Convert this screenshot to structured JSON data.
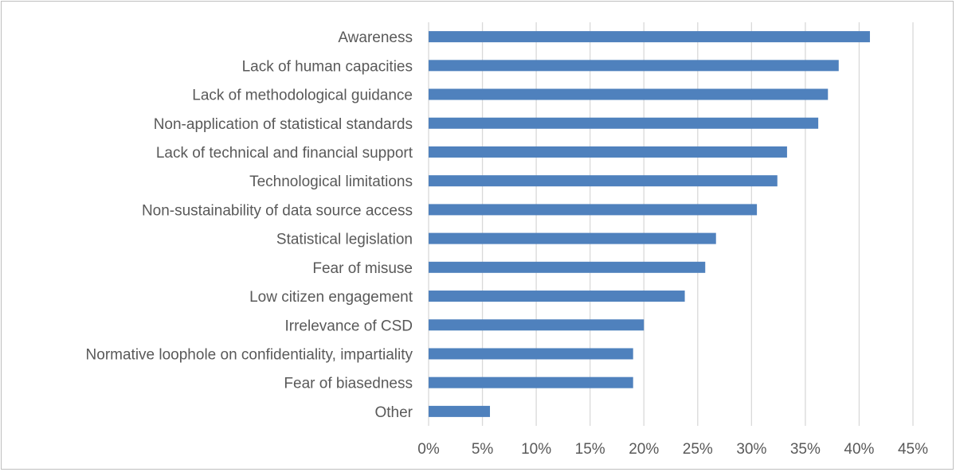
{
  "chart_data": {
    "type": "bar",
    "orientation": "horizontal",
    "title": "",
    "xlabel": "",
    "ylabel": "",
    "xlim": [
      0,
      45
    ],
    "tick_values": [
      0,
      5,
      10,
      15,
      20,
      25,
      30,
      35,
      40,
      45
    ],
    "tick_labels": [
      "0%",
      "5%",
      "10%",
      "15%",
      "20%",
      "25%",
      "30%",
      "35%",
      "40%",
      "45%"
    ],
    "grid": true,
    "legend": "none",
    "bar_color": "#4f81bd",
    "categories": [
      "Awareness",
      "Lack of human capacities",
      "Lack of methodological guidance",
      "Non-application of statistical standards",
      "Lack of technical and financial support",
      "Technological limitations",
      "Non-sustainability of data source access",
      "Statistical legislation",
      "Fear of misuse",
      "Low citizen engagement",
      "Irrelevance of CSD",
      "Normative loophole on confidentiality, impartiality",
      "Fear of biasedness",
      "Other"
    ],
    "values": [
      41,
      38.1,
      37.1,
      36.2,
      33.3,
      32.4,
      30.5,
      26.7,
      25.7,
      23.8,
      20,
      19,
      19,
      5.7
    ]
  }
}
